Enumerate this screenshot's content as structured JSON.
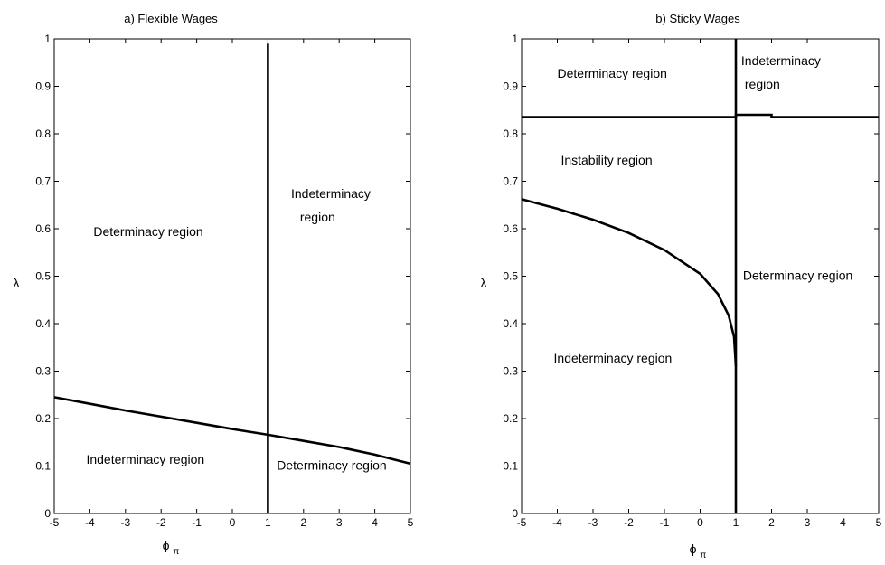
{
  "chart_data": [
    {
      "type": "line",
      "title": "a) Flexible Wages",
      "xlabel": "ϕ",
      "xlabel_sub": "π",
      "ylabel": "λ",
      "xlim": [
        -5,
        5
      ],
      "ylim": [
        0,
        1
      ],
      "xticks": [
        -5,
        -4,
        -3,
        -2,
        -1,
        0,
        1,
        2,
        3,
        4,
        5
      ],
      "yticks": [
        0,
        0.1,
        0.2,
        0.3,
        0.4,
        0.5,
        0.6,
        0.7,
        0.8,
        0.9,
        1
      ],
      "grid": false,
      "series": [
        {
          "x": [
            -5,
            -4,
            -3,
            -2,
            -1,
            0,
            1,
            2,
            3,
            4,
            5
          ],
          "y": [
            0.245,
            0.231,
            0.217,
            0.204,
            0.191,
            0.178,
            0.166,
            0.153,
            0.14,
            0.124,
            0.105
          ]
        },
        {
          "x": [
            1,
            1
          ],
          "y": [
            0,
            0.99
          ]
        }
      ],
      "annotations": [
        {
          "text": "Determinacy region",
          "x": -3.9,
          "y": 0.585
        },
        {
          "text": "Indeterminacy",
          "x": 1.65,
          "y": 0.665
        },
        {
          "text": "region",
          "x": 1.9,
          "y": 0.615
        },
        {
          "text": "Indeterminacy region",
          "x": -4.1,
          "y": 0.105
        },
        {
          "text": "Determinacy region",
          "x": 1.25,
          "y": 0.092
        }
      ]
    },
    {
      "type": "line",
      "title": "b) Sticky Wages",
      "xlabel": "ϕ",
      "xlabel_sub": "π",
      "ylabel": "λ",
      "xlim": [
        -5,
        5
      ],
      "ylim": [
        0,
        1
      ],
      "xticks": [
        -5,
        -4,
        -3,
        -2,
        -1,
        0,
        1,
        2,
        3,
        4,
        5
      ],
      "yticks": [
        0,
        0.1,
        0.2,
        0.3,
        0.4,
        0.5,
        0.6,
        0.7,
        0.8,
        0.9,
        1
      ],
      "grid": false,
      "series": [
        {
          "x": [
            -5,
            -4,
            -3,
            -2,
            -1,
            0,
            0.5,
            0.8,
            0.95,
            1
          ],
          "y": [
            0.662,
            0.642,
            0.619,
            0.591,
            0.555,
            0.505,
            0.462,
            0.417,
            0.372,
            0.31
          ]
        },
        {
          "x": [
            -5,
            1,
            1,
            2,
            2,
            5
          ],
          "y": [
            0.835,
            0.835,
            0.84,
            0.84,
            0.835,
            0.835
          ]
        },
        {
          "x": [
            1,
            1
          ],
          "y": [
            0,
            1
          ]
        }
      ],
      "annotations": [
        {
          "text": "Determinacy region",
          "x": -4.0,
          "y": 0.918
        },
        {
          "text": "Indeterminacy",
          "x": 1.15,
          "y": 0.945
        },
        {
          "text": "region",
          "x": 1.25,
          "y": 0.895
        },
        {
          "text": "Instability region",
          "x": -3.9,
          "y": 0.735
        },
        {
          "text": "Determinacy region",
          "x": 1.2,
          "y": 0.492
        },
        {
          "text": "Indeterminacy region",
          "x": -4.1,
          "y": 0.318
        }
      ]
    }
  ]
}
